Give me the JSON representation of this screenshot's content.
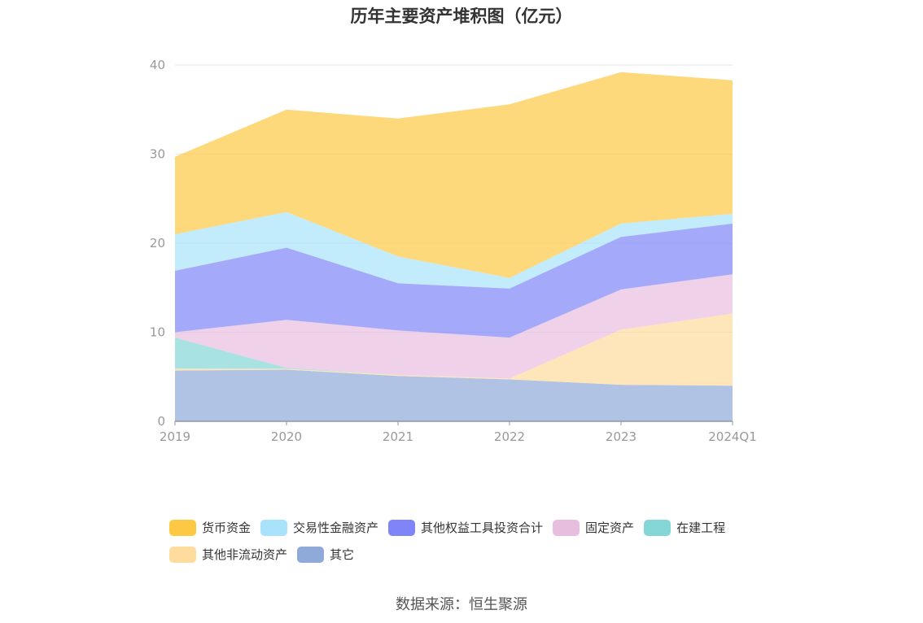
{
  "chart_data": {
    "type": "area",
    "title": "历年主要资产堆积图（亿元）",
    "x": [
      "2019",
      "2020",
      "2021",
      "2022",
      "2023",
      "2024Q1"
    ],
    "ylim": [
      0,
      40
    ],
    "yticks": [
      "0",
      "10",
      "20",
      "30",
      "40"
    ],
    "grid": true,
    "legend_position": "bottom",
    "stacked": true,
    "series": [
      {
        "name": "其它",
        "color": "#8fa9d9",
        "values": [
          5.7,
          5.8,
          5.1,
          4.7,
          4.1,
          4.0
        ]
      },
      {
        "name": "其他非流动资产",
        "color": "#fedc9d",
        "values": [
          0.2,
          0.1,
          0.1,
          0.1,
          6.2,
          8.1
        ]
      },
      {
        "name": "在建工程",
        "color": "#85d6d6",
        "values": [
          3.5,
          0.1,
          0.0,
          0.0,
          0.0,
          0.0
        ]
      },
      {
        "name": "固定资产",
        "color": "#e8bedf",
        "values": [
          0.6,
          5.4,
          5.0,
          4.6,
          4.5,
          4.4
        ]
      },
      {
        "name": "其他权益工具投资合计",
        "color": "#7f85f6",
        "values": [
          6.9,
          8.1,
          5.3,
          5.5,
          5.9,
          5.7
        ]
      },
      {
        "name": "交易性金融资产",
        "color": "#a8e2fb",
        "values": [
          4.1,
          4.0,
          3.0,
          1.2,
          1.5,
          1.1
        ]
      },
      {
        "name": "货币资金",
        "color": "#fdc944",
        "values": [
          8.7,
          11.5,
          15.5,
          19.5,
          17.0,
          15.0
        ]
      }
    ]
  },
  "legend": {
    "row1": [
      {
        "label": "货币资金",
        "color": "#fdc944"
      },
      {
        "label": "交易性金融资产",
        "color": "#a8e2fb"
      },
      {
        "label": "其他权益工具投资合计",
        "color": "#7f85f6"
      },
      {
        "label": "固定资产",
        "color": "#e8bedf"
      },
      {
        "label": "在建工程",
        "color": "#85d6d6"
      }
    ],
    "row2": [
      {
        "label": "其他非流动资产",
        "color": "#fedc9d"
      },
      {
        "label": "其它",
        "color": "#8fa9d9"
      }
    ]
  },
  "source": "数据来源：恒生聚源"
}
